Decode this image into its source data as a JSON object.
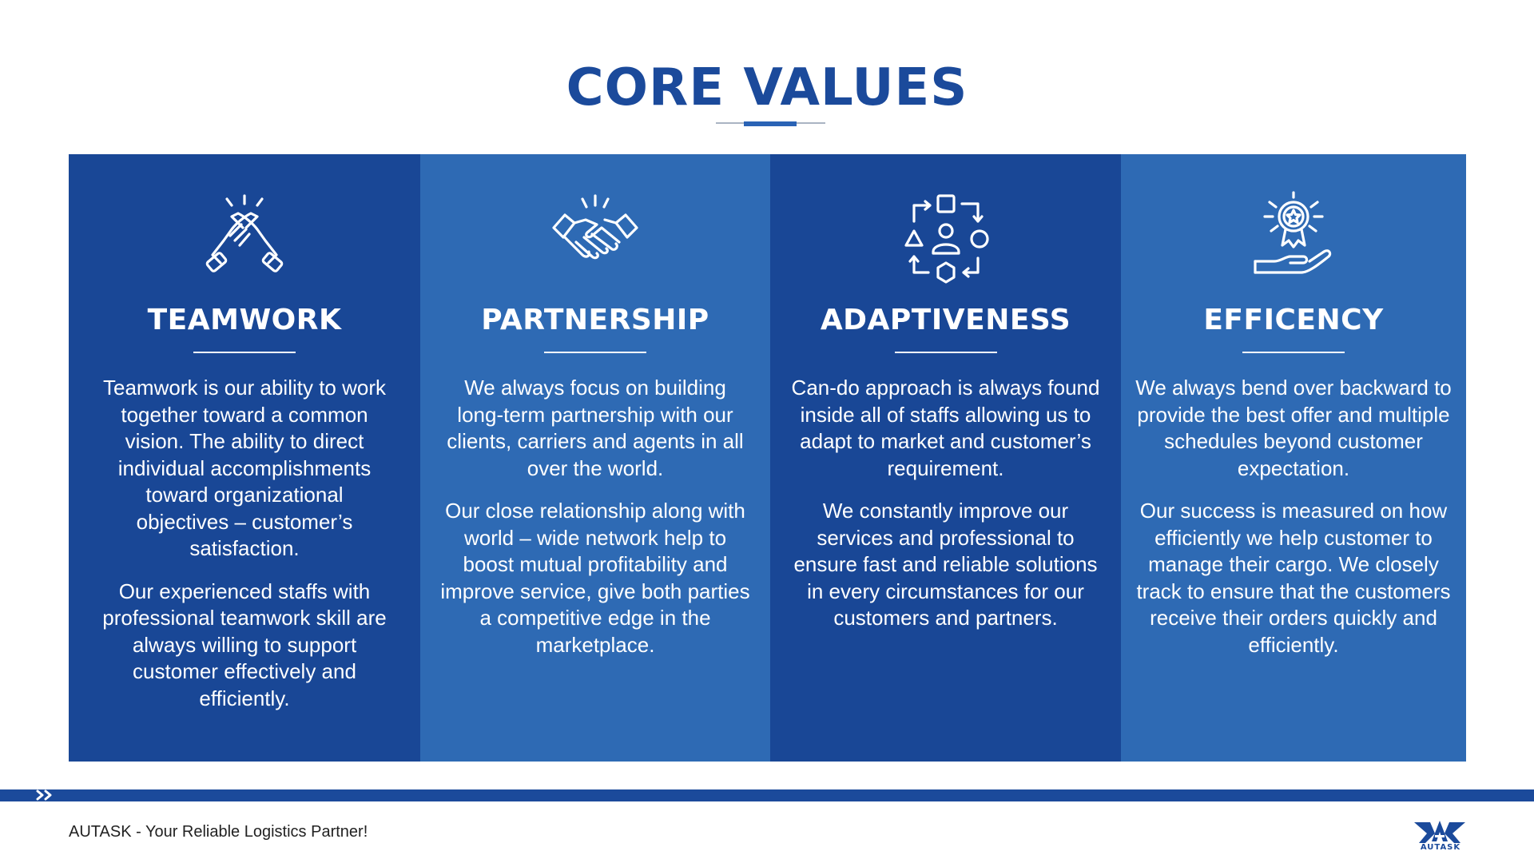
{
  "page": {
    "title": "CORE VALUES"
  },
  "values": [
    {
      "heading": "TEAMWORK",
      "icon": "teamwork-icon",
      "paragraphs": [
        "Teamwork is our ability to work together toward a common vision. The ability to direct individual accomplishments toward organizational objectives – customer’s satisfaction.",
        "Our experienced staffs with professional teamwork skill are always willing to support customer effectively and efficiently."
      ]
    },
    {
      "heading": "PARTNERSHIP",
      "icon": "handshake-icon",
      "paragraphs": [
        "We always focus on building long-term partnership with our clients, carriers and agents in all over the world.",
        "Our close relationship along with world – wide network help to boost mutual profitability and improve service, give both parties a competitive edge in the marketplace."
      ]
    },
    {
      "heading": "ADAPTIVENESS",
      "icon": "adapt-cycle-icon",
      "paragraphs": [
        "Can-do approach is always found inside all of staffs allowing us to adapt to market and customer’s requirement.",
        "We constantly improve our services and professional to ensure fast and reliable solutions in every circumstances for our customers and partners."
      ]
    },
    {
      "heading": "EFFICENCY",
      "icon": "award-hand-icon",
      "paragraphs": [
        "We always bend over backward to provide the best offer and multiple schedules beyond customer expectation.",
        "Our success is measured on how efficiently we help customer to manage their cargo. We closely track to ensure that the customers receive their orders quickly and efficiently."
      ]
    }
  ],
  "footer": {
    "tagline": "AUTASK - Your Reliable Logistics Partner!",
    "logo_text": "AUTASK"
  },
  "colors": {
    "primary": "#194796",
    "secondary": "#2e6ab4",
    "title": "#1b4a9b"
  }
}
